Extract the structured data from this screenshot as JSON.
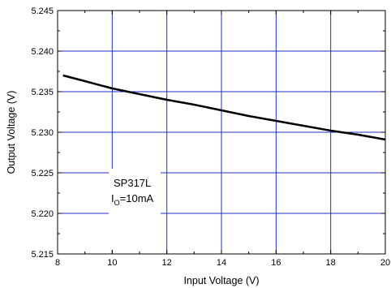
{
  "chart_data": {
    "type": "line",
    "xlabel": "Input Voltage (V)",
    "ylabel": "Output Voltage (V)",
    "xlim": [
      8,
      20
    ],
    "ylim": [
      5.215,
      5.245
    ],
    "x_ticks": [
      "8",
      "10",
      "12",
      "14",
      "16",
      "18",
      "20"
    ],
    "y_ticks": [
      "5.215",
      "5.220",
      "5.225",
      "5.230",
      "5.235",
      "5.240",
      "5.245"
    ],
    "grid": true,
    "grid_color": "#1f2fc8",
    "line_color": "#000000",
    "annotation": {
      "line1": "SP317L",
      "line2_main": "I",
      "line2_sub": "O",
      "line2_rest": "=10mA"
    },
    "series": [
      {
        "x": [
          8.2,
          9,
          10,
          11,
          12,
          13,
          14,
          15,
          16,
          17,
          18,
          19,
          20
        ],
        "y": [
          5.237,
          5.2363,
          5.2354,
          5.2347,
          5.234,
          5.2334,
          5.2327,
          5.232,
          5.2314,
          5.2308,
          5.2302,
          5.2297,
          5.2291
        ]
      }
    ]
  }
}
